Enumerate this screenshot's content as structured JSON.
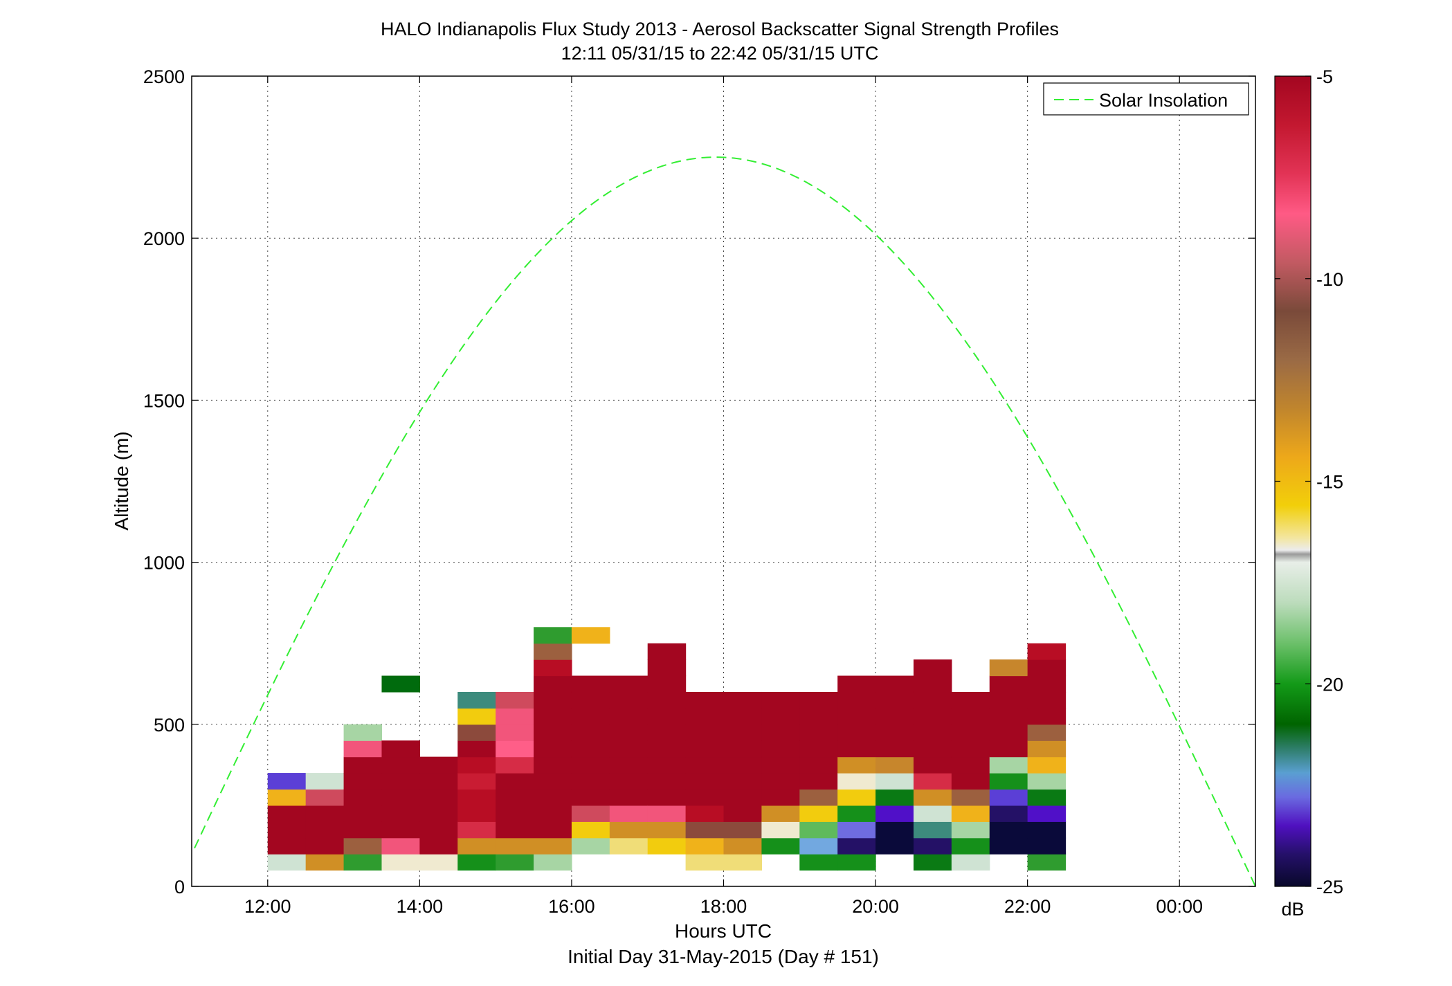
{
  "chart_data": {
    "type": "heatmap",
    "title": "HALO Indianapolis Flux Study 2013 - Aerosol Backscatter Signal Strength Profiles",
    "subtitle": "12:11 05/31/15 to 22:42 05/31/15  UTC",
    "xlabel": "Hours UTC",
    "xlabel2": "Initial Day 31-May-2015 (Day # 151)",
    "ylabel": "Altitude (m)",
    "xlim": [
      11.0,
      25.0
    ],
    "ylim": [
      0,
      2500
    ],
    "x_ticks": [
      12,
      14,
      16,
      18,
      20,
      22,
      24
    ],
    "x_tick_labels": [
      "12:00",
      "14:00",
      "16:00",
      "18:00",
      "20:00",
      "22:00",
      "00:00"
    ],
    "y_ticks": [
      0,
      500,
      1000,
      1500,
      2000,
      2500
    ],
    "y_tick_labels": [
      "0",
      "500",
      "1000",
      "1500",
      "2000",
      "2500"
    ],
    "grid": true,
    "legend": {
      "entries": [
        "Solar Insolation"
      ],
      "position": "top-right"
    },
    "colorbar": {
      "unit": "dB",
      "range": [
        -25,
        -5
      ],
      "ticks": [
        -5,
        -10,
        -15,
        -20,
        -25
      ],
      "tick_labels": [
        "-5",
        "-10",
        "-15",
        "-20",
        "-25"
      ]
    },
    "colors": {
      "curve": "#33ee33",
      "DR": "#a30620",
      "R1": "#b80d24",
      "R2": "#c91c33",
      "R3": "#d62c46",
      "RP": "#cf4a5d",
      "PK": "#f2557b",
      "PK2": "#ff5e88",
      "BR": "#8c4a3c",
      "BR2": "#9c603f",
      "OR": "#d08f25",
      "OR2": "#c7862c",
      "YO": "#f0b21a",
      "YE": "#f2cc0e",
      "LY": "#f0dd78",
      "CR": "#f0ead0",
      "LG": "#cfe3d3",
      "LG2": "#a7d5a4",
      "MG": "#5fba5c",
      "G": "#2f9c2f",
      "G2": "#15901a",
      "DG": "#006b0d",
      "DG2": "#0a7a14",
      "TE": "#3d8b7d",
      "LB": "#72a8e0",
      "PU": "#6f6ce0",
      "PU2": "#5b3fd6",
      "VI": "#5010c8",
      "VI2": "#3a10a0",
      "NA": "#241166",
      "NV": "#0a0a3a"
    },
    "series": [
      {
        "name": "Solar Insolation",
        "type": "line",
        "style": "dashed",
        "peak_time": 17.75,
        "peak_altitude": 2250,
        "zero_times": [
          10.8,
          25.0
        ]
      }
    ],
    "bin_width_hours": 0.5,
    "bin_height_m": 50,
    "columns": [
      {
        "x": 12.25,
        "y0": 50,
        "cells": [
          "LG",
          "DR",
          "DR",
          "DR",
          "YO",
          "PU2"
        ]
      },
      {
        "x": 12.75,
        "y0": 50,
        "cells": [
          "OR",
          "DR",
          "DR",
          "DR",
          "RP",
          "LG"
        ]
      },
      {
        "x": 13.25,
        "y0": 50,
        "cells": [
          "G",
          "BR2",
          "DR",
          "DR",
          "DR",
          "DR",
          "DR",
          "PK",
          "LG2"
        ]
      },
      {
        "x": 13.75,
        "y0": 50,
        "cells": [
          "CR",
          "PK",
          "DR",
          "DR",
          "DR",
          "DR",
          "DR",
          "DR",
          null,
          null,
          null,
          "DG"
        ]
      },
      {
        "x": 14.25,
        "y0": 50,
        "cells": [
          "CR",
          "DR",
          "DR",
          "DR",
          "DR",
          "DR",
          "DR"
        ]
      },
      {
        "x": 14.75,
        "y0": 50,
        "cells": [
          "G2",
          "OR",
          "R3",
          "R1",
          "R1",
          "R2",
          "R1",
          "DR",
          "BR",
          "YE",
          "TE"
        ]
      },
      {
        "x": 15.25,
        "y0": 50,
        "cells": [
          "G",
          "OR",
          "DR",
          "DR",
          "DR",
          "DR",
          "R3",
          "PK2",
          "PK",
          "PK",
          "RP"
        ]
      },
      {
        "x": 15.75,
        "y0": 50,
        "cells": [
          "LG2",
          "OR",
          "DR",
          "DR",
          "DR",
          "DR",
          "DR",
          "DR",
          "DR",
          "DR",
          "DR",
          "DR",
          "R1",
          "BR2",
          "G"
        ]
      },
      {
        "x": 16.25,
        "y0": 100,
        "cells": [
          "LG2",
          "YE",
          "RP",
          "DR",
          "DR",
          "DR",
          "DR",
          "DR",
          "DR",
          "DR",
          "DR"
        ]
      },
      {
        "x": 16.25,
        "y0": 750,
        "cells": [
          "YO"
        ]
      },
      {
        "x": 16.75,
        "y0": 100,
        "cells": [
          "LY",
          "OR",
          "PK",
          "DR",
          "DR",
          "DR",
          "DR",
          "DR",
          "DR",
          "DR",
          "DR"
        ]
      },
      {
        "x": 17.25,
        "y0": 100,
        "cells": [
          "YE",
          "OR",
          "PK",
          "DR",
          "DR",
          "DR",
          "DR",
          "DR",
          "DR",
          "DR",
          "DR",
          "DR",
          "DR"
        ]
      },
      {
        "x": 17.75,
        "y0": 50,
        "cells": [
          "LY",
          "YO",
          "BR",
          "R1",
          "DR",
          "DR",
          "DR",
          "DR",
          "DR",
          "DR",
          "DR"
        ]
      },
      {
        "x": 18.25,
        "y0": 50,
        "cells": [
          "LY",
          "OR",
          "BR",
          "DR",
          "DR",
          "DR",
          "DR",
          "DR",
          "DR",
          "DR",
          "DR"
        ]
      },
      {
        "x": 18.75,
        "y0": 100,
        "cells": [
          "G2",
          "CR",
          "OR",
          "DR",
          "DR",
          "DR",
          "DR",
          "DR",
          "DR",
          "DR"
        ]
      },
      {
        "x": 19.25,
        "y0": 50,
        "cells": [
          "G2",
          "LB",
          "MG",
          "YE",
          "BR2",
          "DR",
          "DR",
          "DR",
          "DR",
          "DR",
          "DR"
        ]
      },
      {
        "x": 19.75,
        "y0": 50,
        "cells": [
          "G2",
          "NA",
          "PU",
          "G2",
          "YE",
          "CR",
          "OR",
          "DR",
          "DR",
          "DR",
          "DR",
          "DR"
        ]
      },
      {
        "x": 20.25,
        "y0": 100,
        "cells": [
          "NV",
          "NV",
          "VI",
          "DG2",
          "LG",
          "OR2",
          "DR",
          "DR",
          "DR",
          "DR",
          "DR"
        ]
      },
      {
        "x": 20.75,
        "y0": 50,
        "cells": [
          "DG2",
          "NA",
          "TE",
          "LG",
          "OR",
          "R3",
          "DR",
          "DR",
          "DR",
          "DR",
          "DR",
          "DR",
          "DR"
        ]
      },
      {
        "x": 21.25,
        "y0": 50,
        "cells": [
          "LG",
          "G2",
          "LG2",
          "YO",
          "BR2",
          "DR",
          "DR",
          "DR",
          "DR",
          "DR",
          "DR"
        ]
      },
      {
        "x": 21.75,
        "y0": 100,
        "cells": [
          "NV",
          "NV",
          "NA",
          "PU2",
          "G2",
          "LG2",
          "DR",
          "DR",
          "DR",
          "DR",
          "DR",
          "OR2"
        ]
      },
      {
        "x": 22.25,
        "y0": 50,
        "cells": [
          "G",
          "NV",
          "NV",
          "VI",
          "DG2",
          "LG2",
          "YO",
          "OR",
          "BR2",
          "DR",
          "DR",
          "DR",
          "DR",
          "R1"
        ]
      }
    ]
  }
}
